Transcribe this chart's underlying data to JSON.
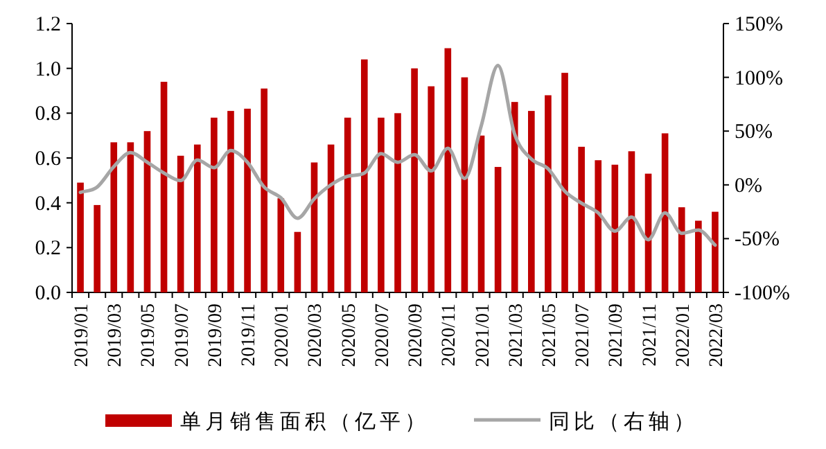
{
  "chart_data": {
    "type": "bar",
    "categories": [
      "2019/01",
      null,
      "2019/03",
      null,
      "2019/05",
      null,
      "2019/07",
      null,
      "2019/09",
      null,
      "2019/11",
      null,
      "2020/01",
      null,
      "2020/03",
      null,
      "2020/05",
      null,
      "2020/07",
      null,
      "2020/09",
      null,
      "2020/11",
      null,
      "2021/01",
      null,
      "2021/03",
      null,
      "2021/05",
      null,
      "2021/07",
      null,
      "2021/09",
      null,
      "2021/11",
      null,
      "2022/01",
      null,
      "2022/03"
    ],
    "series": [
      {
        "name": "单月销售面积（亿平）",
        "color": "#c00000",
        "values": [
          0.49,
          0.39,
          0.67,
          0.67,
          0.72,
          0.94,
          0.61,
          0.66,
          0.78,
          0.81,
          0.82,
          0.91,
          0.42,
          0.27,
          0.58,
          0.66,
          0.78,
          1.04,
          0.78,
          0.8,
          1.0,
          0.92,
          1.09,
          0.96,
          0.7,
          0.56,
          0.85,
          0.81,
          0.88,
          0.98,
          0.65,
          0.59,
          0.57,
          0.63,
          0.53,
          0.71,
          0.38,
          0.32,
          0.36
        ]
      },
      {
        "name": "同比（右轴）",
        "type": "line",
        "axis": "y2",
        "color": "#a6a6a6",
        "values": [
          -7,
          -2,
          17,
          30,
          21,
          11,
          4,
          23,
          16,
          32,
          21,
          -2,
          -12,
          -31,
          -13,
          0,
          8,
          11,
          29,
          21,
          28,
          13,
          34,
          6,
          55,
          111,
          47,
          24,
          15,
          -6,
          -17,
          -26,
          -43,
          -30,
          -51,
          -26,
          -45,
          -42,
          -56
        ]
      }
    ],
    "ylim": [
      0,
      1.2
    ],
    "yticks": [
      {
        "value": 0,
        "label": "0.0"
      },
      {
        "value": 0.2,
        "label": "0.2"
      },
      {
        "value": 0.4,
        "label": "0.4"
      },
      {
        "value": 0.6,
        "label": "0.6"
      },
      {
        "value": 0.8,
        "label": "0.8"
      },
      {
        "value": 1.0,
        "label": "1.0"
      },
      {
        "value": 1.2,
        "label": "1.2"
      }
    ],
    "y2lim": [
      -100,
      150
    ],
    "y2ticks": [
      {
        "value": -100,
        "label": "-100%"
      },
      {
        "value": -50,
        "label": "-50%"
      },
      {
        "value": 0,
        "label": "0%"
      },
      {
        "value": 50,
        "label": "50%"
      },
      {
        "value": 100,
        "label": "100%"
      },
      {
        "value": 150,
        "label": "150%"
      }
    ],
    "legend": "bottom",
    "grid": false
  }
}
